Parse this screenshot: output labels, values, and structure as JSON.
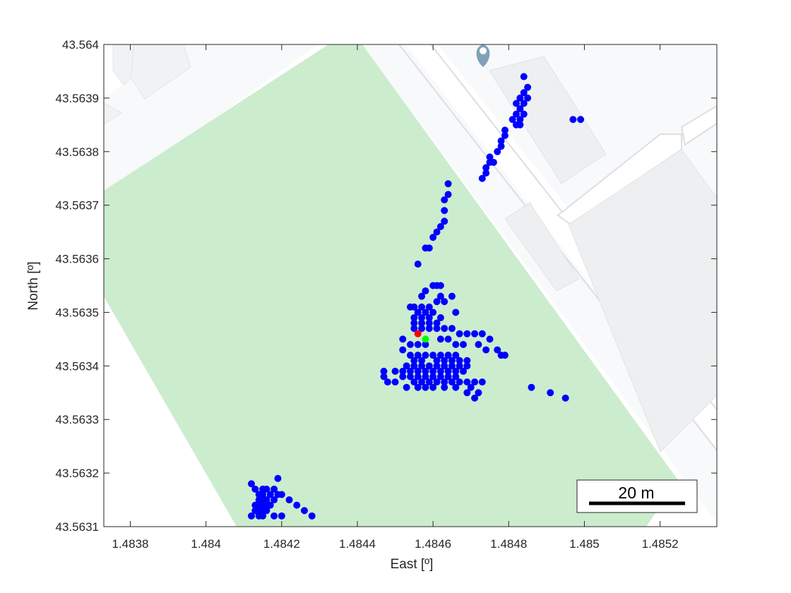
{
  "chart_data": {
    "type": "scatter",
    "xlabel": "East [º]",
    "ylabel": "North [º]",
    "xlim": [
      1.48373,
      1.48535
    ],
    "ylim": [
      43.5631,
      43.564
    ],
    "x_ticks": [
      1.4838,
      1.484,
      1.4842,
      1.4844,
      1.4846,
      1.4848,
      1.485,
      1.4852
    ],
    "x_tick_labels": [
      "1.4838",
      "1.484",
      "1.4842",
      "1.4844",
      "1.4846",
      "1.4848",
      "1.485",
      "1.4852"
    ],
    "y_ticks": [
      43.5631,
      43.5632,
      43.5633,
      43.5634,
      43.5635,
      43.5636,
      43.5637,
      43.5638,
      43.5639,
      43.564
    ],
    "y_tick_labels": [
      "43.5631",
      "43.5632",
      "43.5633",
      "43.5634",
      "43.5635",
      "43.5636",
      "43.5637",
      "43.5638",
      "43.5639",
      "43.564"
    ],
    "grid": false,
    "scale_bar": {
      "label": "20 m"
    },
    "series": [
      {
        "color": "#0000ff",
        "points": [
          [
            1.48484,
            43.56394
          ],
          [
            1.48485,
            43.56392
          ],
          [
            1.48484,
            43.56391
          ],
          [
            1.48483,
            43.5639
          ],
          [
            1.48485,
            43.5639
          ],
          [
            1.48482,
            43.56389
          ],
          [
            1.48484,
            43.56389
          ],
          [
            1.48483,
            43.56388
          ],
          [
            1.48482,
            43.56387
          ],
          [
            1.48484,
            43.56387
          ],
          [
            1.48481,
            43.56386
          ],
          [
            1.48483,
            43.56386
          ],
          [
            1.48482,
            43.56385
          ],
          [
            1.48483,
            43.56385
          ],
          [
            1.48497,
            43.56386
          ],
          [
            1.48499,
            43.56386
          ],
          [
            1.48479,
            43.56384
          ],
          [
            1.48479,
            43.56383
          ],
          [
            1.48478,
            43.56382
          ],
          [
            1.48478,
            43.56381
          ],
          [
            1.48477,
            43.5638
          ],
          [
            1.48475,
            43.56379
          ],
          [
            1.48475,
            43.56378
          ],
          [
            1.48476,
            43.56378
          ],
          [
            1.48474,
            43.56377
          ],
          [
            1.48474,
            43.56376
          ],
          [
            1.48473,
            43.56375
          ],
          [
            1.48464,
            43.56374
          ],
          [
            1.48464,
            43.56372
          ],
          [
            1.48463,
            43.56371
          ],
          [
            1.48463,
            43.56369
          ],
          [
            1.48463,
            43.56367
          ],
          [
            1.48462,
            43.56366
          ],
          [
            1.48461,
            43.56365
          ],
          [
            1.4846,
            43.56364
          ],
          [
            1.48458,
            43.56362
          ],
          [
            1.48459,
            43.56362
          ],
          [
            1.48456,
            43.56359
          ],
          [
            1.4846,
            43.56355
          ],
          [
            1.48461,
            43.56355
          ],
          [
            1.48462,
            43.56355
          ],
          [
            1.48458,
            43.56354
          ],
          [
            1.48462,
            43.56353
          ],
          [
            1.48461,
            43.56352
          ],
          [
            1.48463,
            43.56352
          ],
          [
            1.48465,
            43.56353
          ],
          [
            1.48457,
            43.56353
          ],
          [
            1.48466,
            43.5635
          ],
          [
            1.48455,
            43.56351
          ],
          [
            1.48457,
            43.56351
          ],
          [
            1.48459,
            43.56351
          ],
          [
            1.48454,
            43.56351
          ],
          [
            1.4846,
            43.5635
          ],
          [
            1.48456,
            43.5635
          ],
          [
            1.48458,
            43.5635
          ],
          [
            1.48455,
            43.56349
          ],
          [
            1.48457,
            43.56349
          ],
          [
            1.48459,
            43.56349
          ],
          [
            1.48462,
            43.56349
          ],
          [
            1.48455,
            43.56348
          ],
          [
            1.48457,
            43.56348
          ],
          [
            1.48459,
            43.56348
          ],
          [
            1.48461,
            43.56348
          ],
          [
            1.48455,
            43.56347
          ],
          [
            1.48457,
            43.56347
          ],
          [
            1.48459,
            43.56347
          ],
          [
            1.48461,
            43.56347
          ],
          [
            1.48463,
            43.56347
          ],
          [
            1.48465,
            43.56347
          ],
          [
            1.48467,
            43.56346
          ],
          [
            1.48469,
            43.56346
          ],
          [
            1.48471,
            43.56346
          ],
          [
            1.48473,
            43.56346
          ],
          [
            1.48475,
            43.56345
          ],
          [
            1.48472,
            43.56344
          ],
          [
            1.48474,
            43.56343
          ],
          [
            1.48477,
            43.56343
          ],
          [
            1.48479,
            43.56342
          ],
          [
            1.48478,
            43.56342
          ],
          [
            1.48452,
            43.56345
          ],
          [
            1.48454,
            43.56344
          ],
          [
            1.48456,
            43.56344
          ],
          [
            1.48458,
            43.56344
          ],
          [
            1.48462,
            43.56345
          ],
          [
            1.48464,
            43.56345
          ],
          [
            1.48466,
            43.56344
          ],
          [
            1.48468,
            43.56344
          ],
          [
            1.48452,
            43.56343
          ],
          [
            1.48454,
            43.56342
          ],
          [
            1.48456,
            43.56342
          ],
          [
            1.48458,
            43.56342
          ],
          [
            1.4846,
            43.56342
          ],
          [
            1.48462,
            43.56342
          ],
          [
            1.48464,
            43.56342
          ],
          [
            1.48466,
            43.56342
          ],
          [
            1.48455,
            43.56341
          ],
          [
            1.48457,
            43.56341
          ],
          [
            1.48461,
            43.56341
          ],
          [
            1.48463,
            43.56341
          ],
          [
            1.48465,
            43.56341
          ],
          [
            1.48467,
            43.56341
          ],
          [
            1.48469,
            43.56341
          ],
          [
            1.48453,
            43.5634
          ],
          [
            1.48455,
            43.5634
          ],
          [
            1.48457,
            43.5634
          ],
          [
            1.48459,
            43.5634
          ],
          [
            1.48461,
            43.5634
          ],
          [
            1.48463,
            43.5634
          ],
          [
            1.48465,
            43.5634
          ],
          [
            1.48467,
            43.5634
          ],
          [
            1.48469,
            43.5634
          ],
          [
            1.4845,
            43.56339
          ],
          [
            1.48452,
            43.56339
          ],
          [
            1.48454,
            43.56339
          ],
          [
            1.48456,
            43.56339
          ],
          [
            1.48458,
            43.56339
          ],
          [
            1.4846,
            43.56339
          ],
          [
            1.48462,
            43.56339
          ],
          [
            1.48464,
            43.56339
          ],
          [
            1.48466,
            43.56339
          ],
          [
            1.48468,
            43.56339
          ],
          [
            1.48452,
            43.56338
          ],
          [
            1.48454,
            43.56338
          ],
          [
            1.48456,
            43.56338
          ],
          [
            1.48458,
            43.56338
          ],
          [
            1.4846,
            43.56338
          ],
          [
            1.48462,
            43.56338
          ],
          [
            1.48464,
            43.56338
          ],
          [
            1.48466,
            43.56338
          ],
          [
            1.48455,
            43.56337
          ],
          [
            1.48457,
            43.56337
          ],
          [
            1.48459,
            43.56337
          ],
          [
            1.48461,
            43.56337
          ],
          [
            1.48463,
            43.56337
          ],
          [
            1.48465,
            43.56337
          ],
          [
            1.48467,
            43.56337
          ],
          [
            1.48469,
            43.56337
          ],
          [
            1.48471,
            43.56337
          ],
          [
            1.48473,
            43.56337
          ],
          [
            1.48448,
            43.56337
          ],
          [
            1.4845,
            43.56337
          ],
          [
            1.48453,
            43.56336
          ],
          [
            1.48456,
            43.56336
          ],
          [
            1.48458,
            43.56336
          ],
          [
            1.4846,
            43.56336
          ],
          [
            1.48463,
            43.56336
          ],
          [
            1.48466,
            43.56336
          ],
          [
            1.4847,
            43.56336
          ],
          [
            1.48472,
            43.56335
          ],
          [
            1.48447,
            43.56339
          ],
          [
            1.48447,
            43.56338
          ],
          [
            1.48469,
            43.56335
          ],
          [
            1.48471,
            43.56334
          ],
          [
            1.48486,
            43.56336
          ],
          [
            1.48491,
            43.56335
          ],
          [
            1.48495,
            43.56334
          ],
          [
            1.48412,
            43.56318
          ],
          [
            1.48413,
            43.56317
          ],
          [
            1.48416,
            43.56317
          ],
          [
            1.48418,
            43.56317
          ],
          [
            1.48419,
            43.56319
          ],
          [
            1.48415,
            43.56317
          ],
          [
            1.48415,
            43.56316
          ],
          [
            1.48417,
            43.56316
          ],
          [
            1.48419,
            43.56316
          ],
          [
            1.48414,
            43.56316
          ],
          [
            1.48415,
            43.56315
          ],
          [
            1.48416,
            43.56315
          ],
          [
            1.48418,
            43.56315
          ],
          [
            1.48414,
            43.56315
          ],
          [
            1.48414,
            43.56314
          ],
          [
            1.48415,
            43.56314
          ],
          [
            1.48416,
            43.56314
          ],
          [
            1.48417,
            43.56314
          ],
          [
            1.48413,
            43.56314
          ],
          [
            1.48414,
            43.56313
          ],
          [
            1.48415,
            43.56313
          ],
          [
            1.48416,
            43.56313
          ],
          [
            1.48413,
            43.56313
          ],
          [
            1.48415,
            43.56312
          ],
          [
            1.48414,
            43.56312
          ],
          [
            1.4842,
            43.56316
          ],
          [
            1.48422,
            43.56315
          ],
          [
            1.48424,
            43.56314
          ],
          [
            1.48426,
            43.56313
          ],
          [
            1.48428,
            43.56312
          ],
          [
            1.48412,
            43.56312
          ],
          [
            1.48418,
            43.56312
          ],
          [
            1.4842,
            43.56312
          ]
        ]
      },
      {
        "color": "#ff0000",
        "points": [
          [
            1.48456,
            43.56346
          ]
        ]
      },
      {
        "color": "#00ff00",
        "points": [
          [
            1.48458,
            43.56345
          ]
        ]
      }
    ]
  }
}
